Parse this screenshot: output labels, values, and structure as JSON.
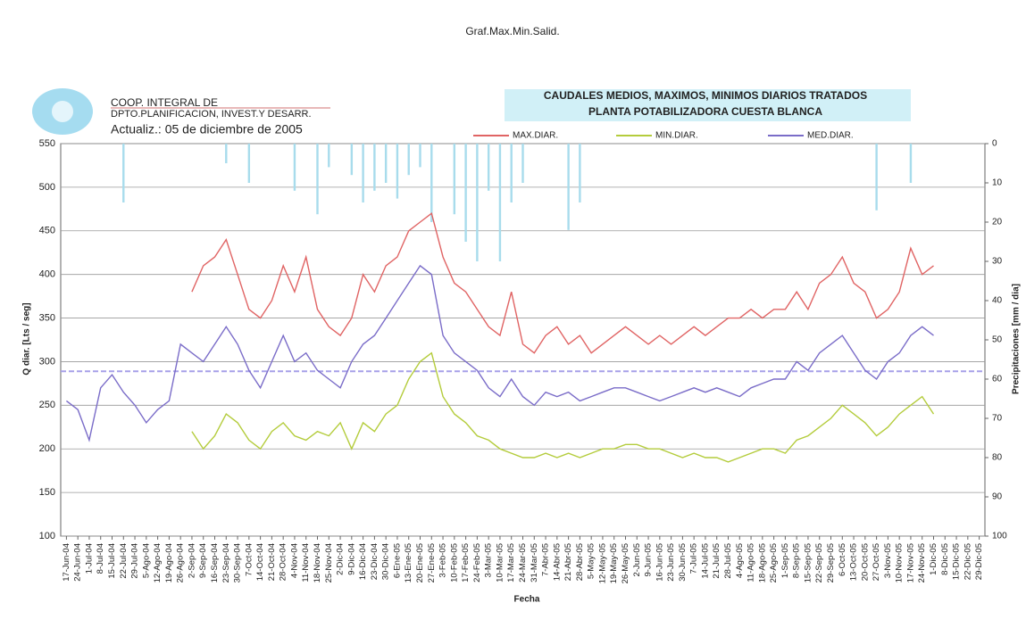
{
  "chart_data": {
    "type": "line",
    "page_title": "Graf.Max.Min.Salid.",
    "org_line1": "COOP. INTEGRAL DE",
    "org_line2": "DPTO.PLANIFICACION, INVEST.Y DESARR.",
    "updated": "Actualiz.: 05 de diciembre de 2005",
    "title": "CAUDALES MEDIOS, MAXIMOS, MINIMOS DIARIOS TRATADOS",
    "subtitle": "PLANTA POTABILIZADORA CUESTA BLANCA",
    "x_label": "Fecha",
    "y_label": "Q diar. [Lts / seg]",
    "y2_label": "Precipitaciones [mm / dia]",
    "categories": [
      "17-Jun-04",
      "24-Jun-04",
      "1-Jul-04",
      "8-Jul-04",
      "15-Jul-04",
      "22-Jul-04",
      "29-Jul-04",
      "5-Ago-04",
      "12-Ago-04",
      "19-Ago-04",
      "26-Ago-04",
      "2-Sep-04",
      "9-Sep-04",
      "16-Sep-04",
      "23-Sep-04",
      "30-Sep-04",
      "7-Oct-04",
      "14-Oct-04",
      "21-Oct-04",
      "28-Oct-04",
      "4-Nov-04",
      "11-Nov-04",
      "18-Nov-04",
      "25-Nov-04",
      "2-Dic-04",
      "9-Dic-04",
      "16-Dic-04",
      "23-Dic-04",
      "30-Dic-04",
      "6-Ene-05",
      "13-Ene-05",
      "20-Ene-05",
      "27-Ene-05",
      "3-Feb-05",
      "10-Feb-05",
      "17-Feb-05",
      "24-Feb-05",
      "3-Mar-05",
      "10-Mar-05",
      "17-Mar-05",
      "24-Mar-05",
      "31-Mar-05",
      "7-Abr-05",
      "14-Abr-05",
      "21-Abr-05",
      "28-Abr-05",
      "5-May-05",
      "12-May-05",
      "19-May-05",
      "26-May-05",
      "2-Jun-05",
      "9-Jun-05",
      "16-Jun-05",
      "23-Jun-05",
      "30-Jun-05",
      "7-Jul-05",
      "14-Jul-05",
      "21-Jul-05",
      "28-Jul-05",
      "4-Ago-05",
      "11-Ago-05",
      "18-Ago-05",
      "25-Ago-05",
      "1-Sep-05",
      "8-Sep-05",
      "15-Sep-05",
      "22-Sep-05",
      "29-Sep-05",
      "6-Oct-05",
      "13-Oct-05",
      "20-Oct-05",
      "27-Oct-05",
      "3-Nov-05",
      "10-Nov-05",
      "17-Nov-05",
      "24-Nov-05",
      "1-Dic-05",
      "8-Dic-05",
      "15-Dic-05",
      "22-Dic-05",
      "29-Dic-05"
    ],
    "series": [
      {
        "name": "MAX.DIAR.",
        "color": "#e06464",
        "values": [
          null,
          null,
          null,
          null,
          null,
          null,
          null,
          null,
          null,
          null,
          null,
          380,
          410,
          420,
          440,
          400,
          360,
          350,
          370,
          410,
          380,
          420,
          360,
          340,
          330,
          350,
          400,
          380,
          410,
          420,
          450,
          460,
          470,
          420,
          390,
          380,
          360,
          340,
          330,
          380,
          320,
          310,
          330,
          340,
          320,
          330,
          310,
          320,
          330,
          340,
          330,
          320,
          330,
          320,
          330,
          340,
          330,
          340,
          350,
          350,
          360,
          350,
          360,
          360,
          380,
          360,
          390,
          400,
          420,
          390,
          380,
          350,
          360,
          380,
          430,
          400,
          410,
          null,
          null,
          null,
          null
        ]
      },
      {
        "name": "MIN.DIAR.",
        "color": "#b4cc3c",
        "values": [
          null,
          null,
          null,
          null,
          null,
          null,
          null,
          null,
          null,
          null,
          null,
          220,
          200,
          215,
          240,
          230,
          210,
          200,
          220,
          230,
          215,
          210,
          220,
          215,
          230,
          200,
          230,
          220,
          240,
          250,
          280,
          300,
          310,
          260,
          240,
          230,
          215,
          210,
          200,
          195,
          190,
          190,
          195,
          190,
          195,
          190,
          195,
          200,
          200,
          205,
          205,
          200,
          200,
          195,
          190,
          195,
          190,
          190,
          185,
          190,
          195,
          200,
          200,
          195,
          210,
          215,
          225,
          235,
          250,
          240,
          230,
          215,
          225,
          240,
          250,
          260,
          240,
          null,
          null,
          null,
          null
        ]
      },
      {
        "name": "MED.DIAR.",
        "color": "#7a6cc8",
        "values": [
          255,
          245,
          210,
          270,
          285,
          265,
          250,
          230,
          245,
          255,
          320,
          310,
          300,
          320,
          340,
          320,
          290,
          270,
          300,
          330,
          300,
          310,
          290,
          280,
          270,
          300,
          320,
          330,
          350,
          370,
          390,
          410,
          400,
          330,
          310,
          300,
          290,
          270,
          260,
          280,
          260,
          250,
          265,
          260,
          265,
          255,
          260,
          265,
          270,
          270,
          265,
          260,
          255,
          260,
          265,
          270,
          265,
          270,
          265,
          260,
          270,
          275,
          280,
          280,
          300,
          290,
          310,
          320,
          330,
          310,
          290,
          280,
          300,
          310,
          330,
          340,
          330,
          null,
          null,
          null,
          null
        ]
      }
    ],
    "precipitation": {
      "axis": "y2",
      "color": "#a8dcec",
      "values": [
        0,
        0,
        0,
        0,
        0,
        15,
        0,
        0,
        0,
        0,
        0,
        0,
        0,
        0,
        5,
        0,
        10,
        0,
        0,
        0,
        12,
        0,
        18,
        6,
        0,
        8,
        15,
        12,
        10,
        14,
        8,
        6,
        20,
        0,
        18,
        25,
        30,
        12,
        30,
        15,
        10,
        0,
        0,
        0,
        22,
        15,
        0,
        0,
        0,
        0,
        0,
        0,
        0,
        0,
        0,
        0,
        0,
        0,
        0,
        0,
        0,
        0,
        0,
        0,
        0,
        0,
        0,
        0,
        0,
        0,
        0,
        17,
        0,
        0,
        10,
        0,
        0,
        0,
        0,
        0,
        0
      ]
    },
    "reference_line": 289,
    "ylim": [
      100,
      550
    ],
    "yticks": [
      100,
      150,
      200,
      250,
      300,
      350,
      400,
      450,
      500,
      550
    ],
    "y2lim": [
      100,
      0
    ],
    "y2ticks": [
      0,
      10,
      20,
      30,
      40,
      50,
      60,
      70,
      80,
      90,
      100
    ],
    "grid": true,
    "legend": "top"
  }
}
